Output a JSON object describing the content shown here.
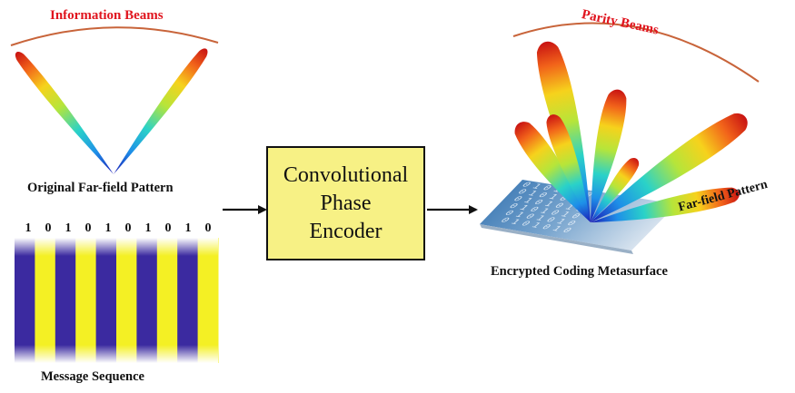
{
  "info_title": "Information Beams",
  "original_label": "Original Far-field Pattern",
  "bits": [
    "1",
    "0",
    "1",
    "0",
    "1",
    "0",
    "1",
    "0",
    "1",
    "0"
  ],
  "message_label": "Message Sequence",
  "encoder_lines": [
    "Convolutional",
    "Phase",
    "Encoder"
  ],
  "parity_title": "Parity Beams",
  "farfield_label": "Far-field Pattern",
  "metasurface_label": "Encrypted Coding Metasurface",
  "metasurface_bits_text": "0101010",
  "colors": {
    "title_red": "#e0141e",
    "stripe_blue": "#3b2aa0",
    "stripe_yellow": "#f4f024",
    "box_fill": "#f7f185"
  }
}
